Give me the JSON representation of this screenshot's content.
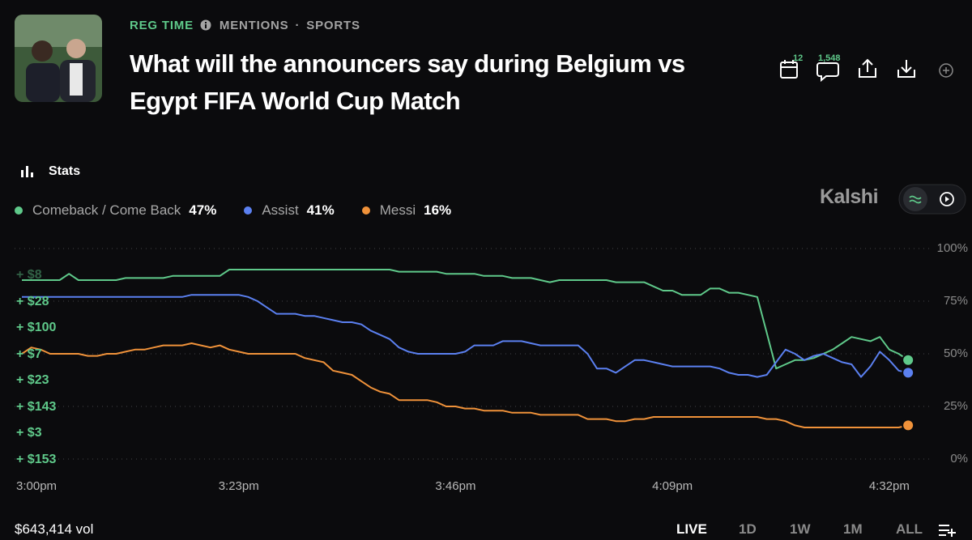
{
  "header": {
    "tags": {
      "reg_time": "REG TIME",
      "category": "MENTIONS",
      "separator": "·",
      "subcategory": "SPORTS"
    },
    "title": "What will the announcers say during Belgium vs Egypt FIFA World Cup Match",
    "counts": {
      "calendar": "12",
      "comments": "1,548"
    }
  },
  "stats_label": "Stats",
  "brand": "Kalshi",
  "trades": [
    "+ $8",
    "+ $28",
    "+ $100",
    "+ $7",
    "+ $23",
    "+ $143",
    "+ $3",
    "+ $153"
  ],
  "chart_data": {
    "type": "line",
    "categories": [
      "3:00pm",
      null,
      null,
      null,
      null,
      null,
      null,
      null,
      null,
      null,
      null,
      null,
      null,
      null,
      null,
      null,
      null,
      null,
      null,
      null,
      null,
      null,
      null,
      "3:23pm",
      null,
      null,
      null,
      null,
      null,
      null,
      null,
      null,
      null,
      null,
      null,
      null,
      null,
      null,
      null,
      null,
      null,
      null,
      null,
      null,
      null,
      null,
      "3:46pm",
      null,
      null,
      null,
      null,
      null,
      null,
      null,
      null,
      null,
      null,
      null,
      null,
      null,
      null,
      null,
      null,
      null,
      null,
      null,
      null,
      null,
      null,
      "4:09pm",
      null,
      null,
      null,
      null,
      null,
      null,
      null,
      null,
      null,
      null,
      null,
      null,
      null,
      null,
      null,
      null,
      null,
      null,
      null,
      null,
      null,
      null,
      "4:32pm",
      null,
      null
    ],
    "series": [
      {
        "name": "Comeback / Come Back",
        "color": "#5fc98a",
        "current_label": "47%",
        "values": [
          85,
          85,
          85,
          85,
          85,
          88,
          85,
          85,
          85,
          85,
          85,
          86,
          86,
          86,
          86,
          86,
          87,
          87,
          87,
          87,
          87,
          87,
          90,
          90,
          90,
          90,
          90,
          90,
          90,
          90,
          90,
          90,
          90,
          90,
          90,
          90,
          90,
          90,
          90,
          90,
          89,
          89,
          89,
          89,
          89,
          88,
          88,
          88,
          88,
          87,
          87,
          87,
          86,
          86,
          86,
          85,
          84,
          85,
          85,
          85,
          85,
          85,
          85,
          84,
          84,
          84,
          84,
          82,
          80,
          80,
          78,
          78,
          78,
          81,
          81,
          79,
          79,
          78,
          77,
          60,
          43,
          45,
          47,
          47,
          48,
          50,
          52,
          55,
          58,
          57,
          56,
          58,
          52,
          50,
          47
        ]
      },
      {
        "name": "Assist",
        "color": "#5b80f0",
        "current_label": "41%",
        "values": [
          77,
          77,
          77,
          77,
          77,
          77,
          77,
          77,
          77,
          77,
          77,
          77,
          77,
          77,
          77,
          77,
          77,
          77,
          78,
          78,
          78,
          78,
          78,
          78,
          77,
          75,
          72,
          69,
          69,
          69,
          68,
          68,
          67,
          66,
          65,
          65,
          64,
          61,
          59,
          57,
          53,
          51,
          50,
          50,
          50,
          50,
          50,
          51,
          54,
          54,
          54,
          56,
          56,
          56,
          55,
          54,
          54,
          54,
          54,
          54,
          50,
          43,
          43,
          41,
          44,
          47,
          47,
          46,
          45,
          44,
          44,
          44,
          44,
          44,
          43,
          41,
          40,
          40,
          39,
          40,
          46,
          52,
          50,
          47,
          49,
          50,
          48,
          46,
          45,
          39,
          44,
          51,
          47,
          42,
          41
        ]
      },
      {
        "name": "Messi",
        "color": "#f0923a",
        "current_label": "16%",
        "values": [
          50,
          53,
          52,
          50,
          50,
          50,
          50,
          49,
          49,
          50,
          50,
          51,
          52,
          52,
          53,
          54,
          54,
          54,
          55,
          54,
          53,
          54,
          52,
          51,
          50,
          50,
          50,
          50,
          50,
          50,
          48,
          47,
          46,
          42,
          41,
          40,
          37,
          34,
          32,
          31,
          28,
          28,
          28,
          28,
          27,
          25,
          25,
          24,
          24,
          23,
          23,
          23,
          22,
          22,
          22,
          21,
          21,
          21,
          21,
          21,
          19,
          19,
          19,
          18,
          18,
          19,
          19,
          20,
          20,
          20,
          20,
          20,
          20,
          20,
          20,
          20,
          20,
          20,
          20,
          19,
          19,
          18,
          16,
          15,
          15,
          15,
          15,
          15,
          15,
          15,
          15,
          15,
          15,
          15,
          16
        ]
      }
    ],
    "ylim": [
      0,
      100
    ],
    "yticks": [
      {
        "value": 0,
        "label": "0%"
      },
      {
        "value": 25,
        "label": "25%"
      },
      {
        "value": 50,
        "label": "50%"
      },
      {
        "value": 75,
        "label": "75%"
      },
      {
        "value": 100,
        "label": "100%"
      }
    ],
    "grid": true
  },
  "footer": {
    "volume": "$643,414 vol",
    "ranges": [
      "LIVE",
      "1D",
      "1W",
      "1M",
      "ALL"
    ]
  }
}
